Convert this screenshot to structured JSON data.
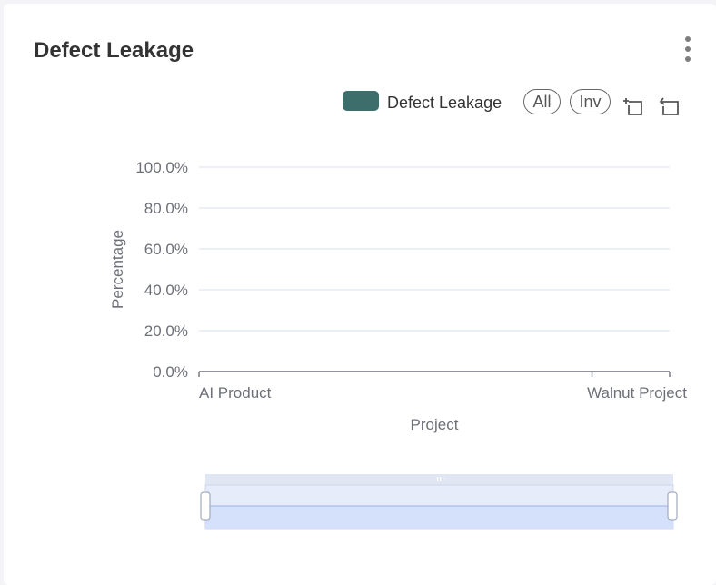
{
  "card": {
    "title": "Defect Leakage"
  },
  "legend": {
    "label": "Defect Leakage",
    "color": "#3d6e6c"
  },
  "toolbar": {
    "all_label": "All",
    "inv_label": "Inv",
    "icons": [
      "zoom-select-icon",
      "zoom-reset-icon"
    ]
  },
  "chart_data": {
    "type": "bar",
    "categories": [
      "AI Product",
      "Walnut Project"
    ],
    "series": [
      {
        "name": "Defect Leakage",
        "values": [
          0,
          0
        ]
      }
    ],
    "xlabel": "Project",
    "ylabel": "Percentage",
    "ylim": [
      0,
      100
    ],
    "yticks": [
      "0.0%",
      "20.0%",
      "40.0%",
      "60.0%",
      "80.0%",
      "100.0%"
    ],
    "grid": true,
    "legend_position": "top-right",
    "has_data_zoom_slider": true
  }
}
